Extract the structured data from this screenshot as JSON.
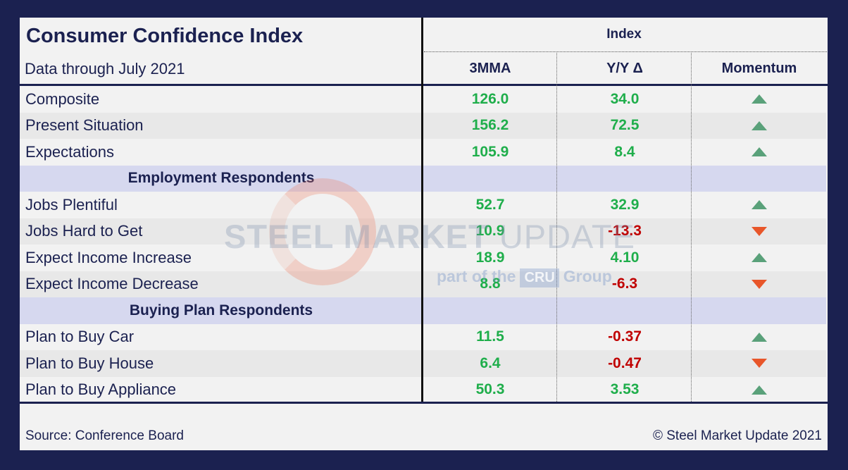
{
  "title": "Consumer Confidence Index",
  "subtitle": "Data through July 2021",
  "index_label": "Index",
  "columns": [
    "3MMA",
    "Y/Y Δ",
    "Momentum"
  ],
  "rows": [
    {
      "type": "data",
      "label": "Composite",
      "mma": "126.0",
      "yoy": "34.0",
      "yoy_sign": "pos",
      "momentum": "up"
    },
    {
      "type": "data",
      "label": "Present Situation",
      "mma": "156.2",
      "yoy": "72.5",
      "yoy_sign": "pos",
      "momentum": "up"
    },
    {
      "type": "data",
      "label": "Expectations",
      "mma": "105.9",
      "yoy": "8.4",
      "yoy_sign": "pos",
      "momentum": "up"
    },
    {
      "type": "section",
      "label": "Employment Respondents"
    },
    {
      "type": "data",
      "label": "Jobs Plentiful",
      "mma": "52.7",
      "yoy": "32.9",
      "yoy_sign": "pos",
      "momentum": "up"
    },
    {
      "type": "data",
      "label": "Jobs Hard to Get",
      "mma": "10.9",
      "yoy": "-13.3",
      "yoy_sign": "neg",
      "momentum": "down"
    },
    {
      "type": "data",
      "label": "Expect Income Increase",
      "mma": "18.9",
      "yoy": "4.10",
      "yoy_sign": "pos",
      "momentum": "up"
    },
    {
      "type": "data",
      "label": "Expect Income Decrease",
      "mma": "8.8",
      "yoy": "-6.3",
      "yoy_sign": "neg",
      "momentum": "down"
    },
    {
      "type": "section",
      "label": "Buying Plan Respondents"
    },
    {
      "type": "data",
      "label": "Plan to Buy Car",
      "mma": "11.5",
      "yoy": "-0.37",
      "yoy_sign": "neg",
      "momentum": "up"
    },
    {
      "type": "data",
      "label": "Plan to Buy House",
      "mma": "6.4",
      "yoy": "-0.47",
      "yoy_sign": "neg",
      "momentum": "down"
    },
    {
      "type": "data",
      "label": "Plan to Buy Appliance",
      "mma": "50.3",
      "yoy": "3.53",
      "yoy_sign": "pos",
      "momentum": "up"
    }
  ],
  "watermark": {
    "brand_bold": "STEEL MARKET",
    "brand_light": "UPDATE",
    "tag_pre": "part of the",
    "tag_box": "CRU",
    "tag_post": "Group"
  },
  "footer": {
    "source": "Source: Conference Board",
    "copyright": "© Steel Market Update 2021"
  },
  "colors": {
    "navy": "#1b2150",
    "positive": "#1fae4b",
    "negative": "#c00000",
    "up_arrow": "#5aa17a",
    "down_arrow": "#e8562a",
    "section_bg": "#d6d8ef"
  }
}
